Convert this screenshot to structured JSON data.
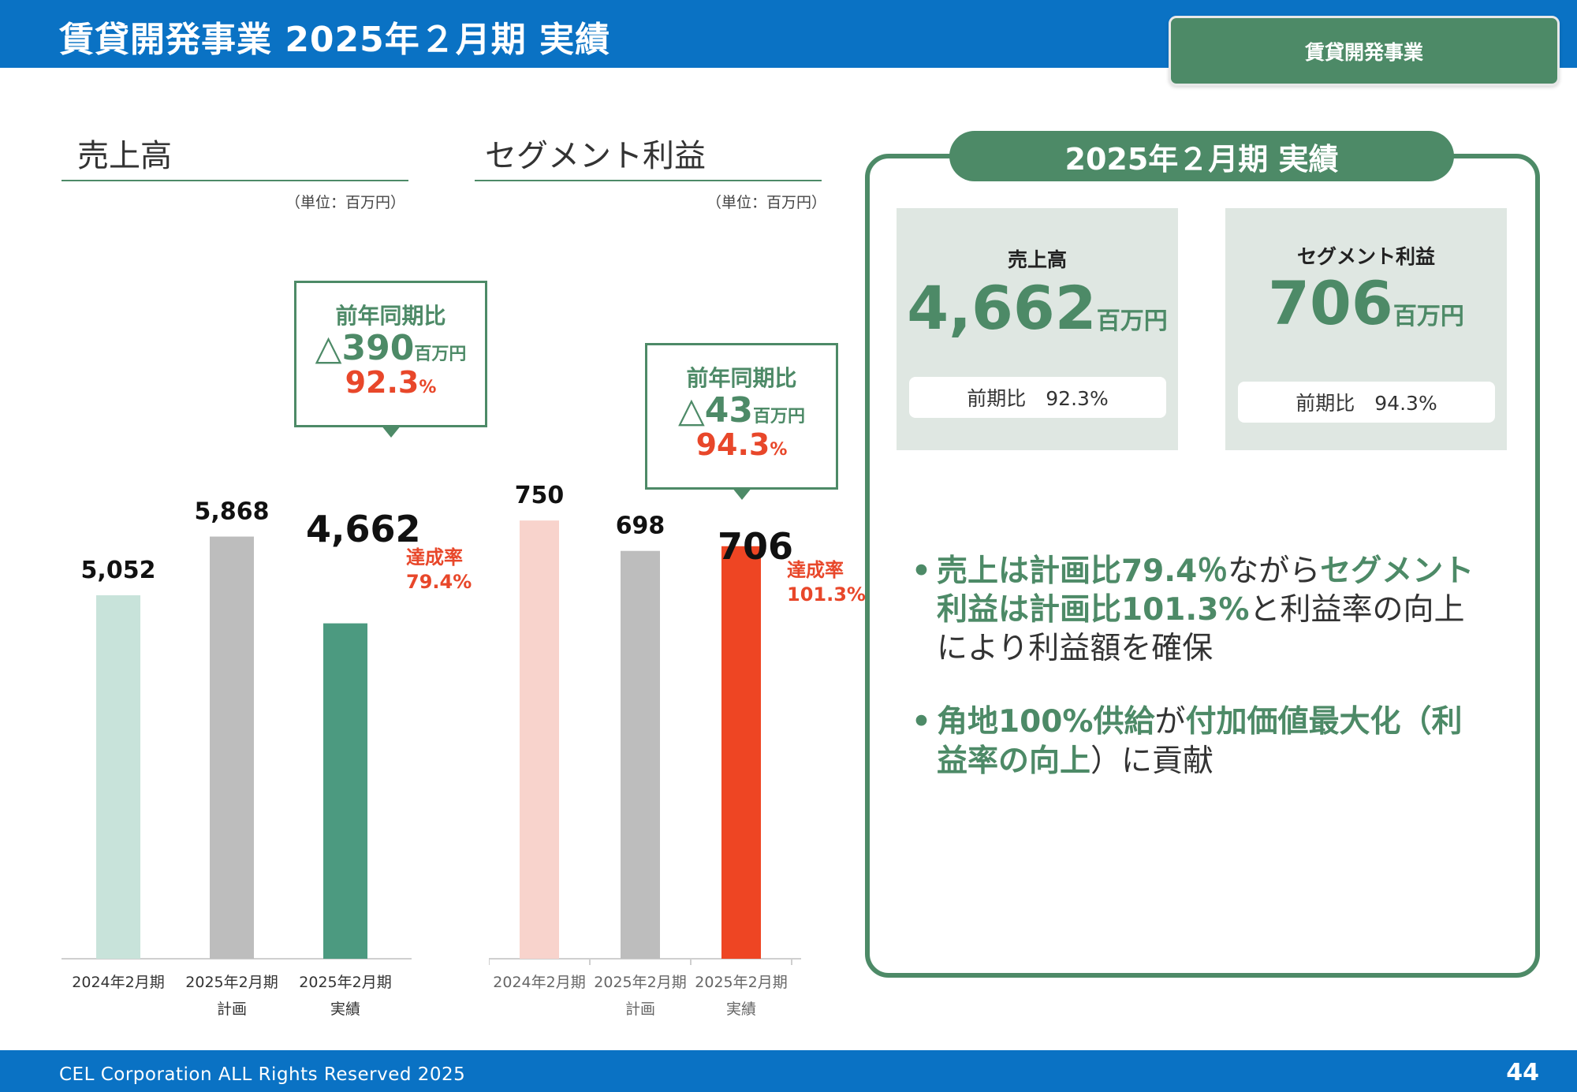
{
  "header": {
    "title": "賃貸開発事業 2025年２月期 実績",
    "tag": "賃貸開発事業"
  },
  "left_section": {
    "title": "売上高",
    "unit": "（単位：百万円）",
    "callout": {
      "label": "前年同期比",
      "diff": "△390",
      "diff_unit": "百万円",
      "pct": "92.3",
      "pct_unit": "%"
    },
    "highlight_value": "4,662",
    "achievement": {
      "label": "達成率",
      "value": "79.4%"
    }
  },
  "right_chart_section": {
    "title": "セグメント利益",
    "unit": "（単位：百万円）",
    "callout": {
      "label": "前年同期比",
      "diff": "△43",
      "diff_unit": "百万円",
      "pct": "94.3",
      "pct_unit": "%"
    },
    "highlight_value": "706",
    "achievement": {
      "label": "達成率",
      "value": "101.3%"
    }
  },
  "chart_data": [
    {
      "type": "bar",
      "title": "売上高",
      "categories": [
        [
          "2024年2月期"
        ],
        [
          "2025年2月期",
          "計画"
        ],
        [
          "2025年2月期",
          "実績"
        ]
      ],
      "values": [
        5052,
        5868,
        4662
      ],
      "value_labels": [
        "5,052",
        "5,868",
        ""
      ],
      "colors": [
        "#c8e3da",
        "#bdbdbd",
        "#4c9a80"
      ],
      "ylim": [
        0,
        7200
      ],
      "grid": false
    },
    {
      "type": "bar",
      "title": "セグメント利益",
      "categories": [
        [
          "2024年2月期"
        ],
        [
          "2025年2月期",
          "計画"
        ],
        [
          "2025年2月期",
          "実績"
        ]
      ],
      "values": [
        750,
        698,
        706
      ],
      "value_labels": [
        "750",
        "698",
        ""
      ],
      "colors": [
        "#f8d3cc",
        "#bdbdbd",
        "#ee4523"
      ],
      "ylim": [
        0,
        900
      ],
      "grid": false
    }
  ],
  "panel": {
    "title": "2025年２月期 実績",
    "kpis": [
      {
        "label": "売上高",
        "value": "4,662",
        "unit": "百万円",
        "sub": "前期比　92.3%"
      },
      {
        "label": "セグメント利益",
        "value": "706",
        "unit": "百万円",
        "sub": "前期比　94.3%"
      }
    ],
    "bullets": [
      {
        "parts": [
          {
            "text": "売上は計画比79.4％",
            "hl": true
          },
          {
            "text": "ながら",
            "hl": false
          },
          {
            "text": "セグメント利益は計画比101.3%",
            "hl": true
          },
          {
            "text": "と利益率の向上により利益額を確保",
            "hl": false
          }
        ]
      },
      {
        "parts": [
          {
            "text": "角地100%供給",
            "hl": true
          },
          {
            "text": "が",
            "hl": false
          },
          {
            "text": "付加価値最大化（利益率の向上",
            "hl": true
          },
          {
            "text": "）に貢献",
            "hl": false
          }
        ]
      }
    ],
    "bullet_symbol": "•"
  },
  "footer": {
    "copyright": "CEL Corporation ALL Rights Reserved 2025",
    "page": "44"
  }
}
